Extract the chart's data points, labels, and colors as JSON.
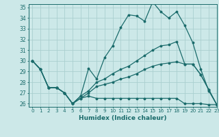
{
  "xlabel": "Humidex (Indice chaleur)",
  "ylabel": "",
  "xlim": [
    -0.5,
    23
  ],
  "ylim": [
    25.7,
    35.3
  ],
  "yticks": [
    26,
    27,
    28,
    29,
    30,
    31,
    32,
    33,
    34,
    35
  ],
  "xticks": [
    0,
    1,
    2,
    3,
    4,
    5,
    6,
    7,
    8,
    9,
    10,
    11,
    12,
    13,
    14,
    15,
    16,
    17,
    18,
    19,
    20,
    21,
    22,
    23
  ],
  "bg_color": "#cce8e8",
  "line_color": "#1a6b6b",
  "grid_color": "#aacfcf",
  "lines": [
    [
      30.0,
      29.2,
      27.5,
      27.5,
      27.0,
      26.0,
      26.7,
      29.3,
      28.3,
      30.3,
      31.4,
      33.1,
      34.3,
      34.2,
      33.7,
      35.5,
      34.6,
      34.0,
      34.6,
      33.3,
      31.7,
      29.2,
      27.2,
      25.9
    ],
    [
      30.0,
      29.2,
      27.5,
      27.5,
      27.0,
      26.0,
      26.7,
      27.2,
      28.0,
      28.3,
      28.8,
      29.2,
      29.5,
      30.0,
      30.5,
      31.0,
      31.4,
      31.5,
      31.8,
      29.7,
      29.7,
      28.7,
      27.3,
      25.9
    ],
    [
      30.0,
      29.2,
      27.5,
      27.5,
      27.0,
      26.0,
      26.5,
      27.0,
      27.6,
      27.8,
      28.0,
      28.3,
      28.5,
      28.8,
      29.2,
      29.5,
      29.7,
      29.8,
      29.9,
      29.7,
      29.7,
      28.7,
      27.3,
      25.9
    ],
    [
      30.0,
      29.2,
      27.5,
      27.5,
      27.0,
      26.0,
      26.5,
      26.7,
      26.5,
      26.5,
      26.5,
      26.5,
      26.5,
      26.5,
      26.5,
      26.5,
      26.5,
      26.5,
      26.5,
      26.0,
      26.0,
      26.0,
      25.9,
      25.9
    ]
  ]
}
